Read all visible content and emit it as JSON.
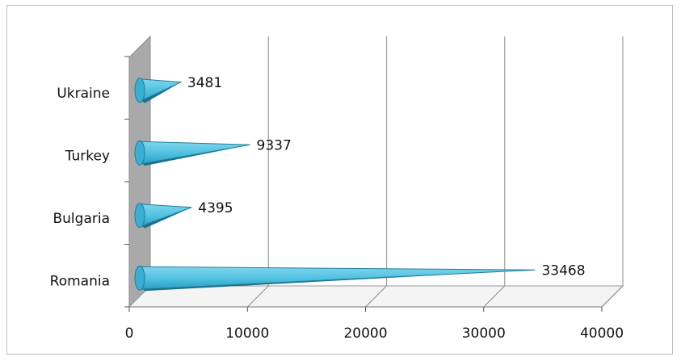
{
  "chart_data": {
    "type": "bar",
    "orientation": "horizontal",
    "style": "3d-cone",
    "title": "",
    "xlabel": "",
    "ylabel": "",
    "categories": [
      "Romania",
      "Bulgaria",
      "Turkey",
      "Ukraine"
    ],
    "values": [
      33468,
      4395,
      9337,
      3481
    ],
    "value_labels": [
      "33468",
      "4395",
      "9337",
      "3481"
    ],
    "xlim": [
      0,
      40000
    ],
    "xticks": [
      0,
      10000,
      20000,
      30000,
      40000
    ],
    "xtick_labels": [
      "0",
      "10000",
      "20000",
      "30000",
      "40000"
    ],
    "grid": true,
    "legend": "none",
    "colors": {
      "bar_top": "#5cc8e4",
      "bar_bottom": "#2aa0c4",
      "bar_dark": "#1d6f89",
      "wall": "#a9a9a9",
      "gridline": "#a0a0a0"
    }
  }
}
